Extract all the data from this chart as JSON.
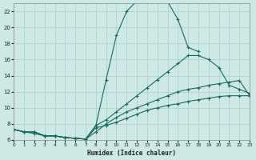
{
  "xlabel": "Humidex (Indice chaleur)",
  "bg_color": "#cde8e5",
  "grid_color": "#aacfcc",
  "line_color": "#1a6b5e",
  "xlim": [
    0,
    23
  ],
  "ylim": [
    6,
    23
  ],
  "yticks": [
    6,
    8,
    10,
    12,
    14,
    16,
    18,
    20,
    22
  ],
  "xticks": [
    0,
    1,
    2,
    3,
    4,
    5,
    6,
    7,
    8,
    9,
    10,
    11,
    12,
    13,
    14,
    15,
    16,
    17,
    18,
    19,
    20,
    21,
    22,
    23
  ],
  "curves": [
    {
      "x": [
        0,
        1,
        2,
        3,
        4,
        5,
        6,
        7,
        8,
        9,
        10,
        11,
        12,
        13,
        14,
        15,
        16,
        17,
        18
      ],
      "y": [
        7.3,
        7.0,
        7.0,
        6.5,
        6.5,
        6.3,
        6.2,
        6.1,
        7.8,
        13.5,
        19.0,
        22.0,
        23.3,
        23.5,
        23.5,
        23.2,
        21.0,
        17.5,
        17.0
      ]
    },
    {
      "x": [
        0,
        1,
        2,
        3,
        4,
        5,
        6,
        7,
        8,
        9,
        10,
        11,
        12,
        13,
        14,
        15,
        16,
        17,
        18,
        19,
        20,
        21,
        22,
        23
      ],
      "y": [
        7.3,
        7.0,
        7.0,
        6.5,
        6.5,
        6.3,
        6.2,
        6.1,
        7.8,
        8.5,
        9.5,
        10.5,
        11.5,
        12.5,
        13.5,
        14.5,
        15.5,
        16.5,
        16.5,
        16.0,
        15.0,
        12.8,
        12.3,
        11.8
      ]
    },
    {
      "x": [
        0,
        1,
        2,
        3,
        4,
        5,
        6,
        7,
        8,
        9,
        10,
        11,
        12,
        13,
        14,
        15,
        16,
        17,
        18,
        19,
        20,
        21,
        22,
        23
      ],
      "y": [
        7.3,
        7.0,
        7.0,
        6.5,
        6.5,
        6.3,
        6.2,
        6.1,
        7.0,
        8.0,
        8.8,
        9.5,
        10.0,
        10.5,
        11.0,
        11.5,
        12.0,
        12.3,
        12.5,
        12.8,
        13.0,
        13.2,
        13.4,
        11.5
      ]
    },
    {
      "x": [
        0,
        1,
        2,
        3,
        4,
        5,
        6,
        7,
        8,
        9,
        10,
        11,
        12,
        13,
        14,
        15,
        16,
        17,
        18,
        19,
        20,
        21,
        22,
        23
      ],
      "y": [
        7.3,
        7.0,
        6.8,
        6.5,
        6.5,
        6.3,
        6.2,
        6.1,
        7.5,
        7.8,
        8.2,
        8.7,
        9.2,
        9.7,
        10.0,
        10.3,
        10.5,
        10.8,
        11.0,
        11.2,
        11.4,
        11.5,
        11.5,
        11.5
      ]
    }
  ]
}
